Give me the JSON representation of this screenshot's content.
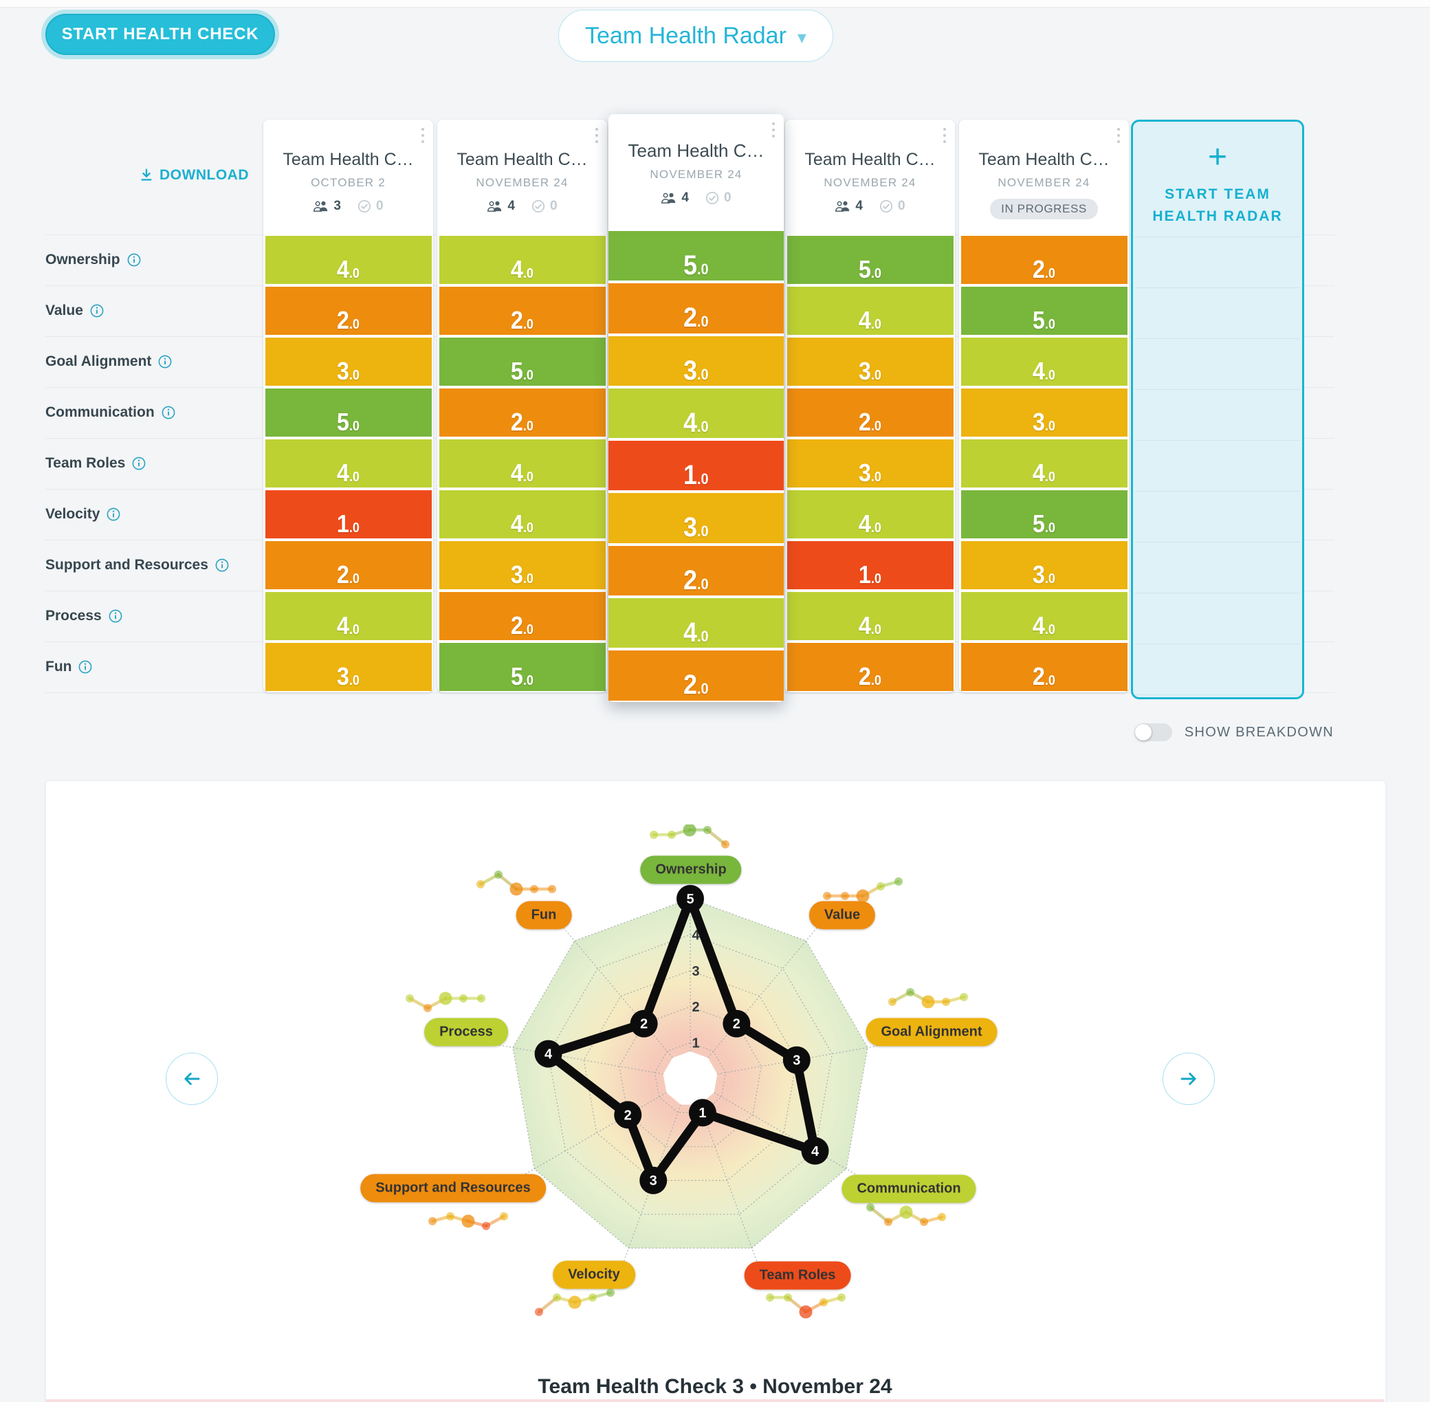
{
  "app": {
    "start_health_check_button": "START HEALTH CHECK",
    "title_dropdown": "Team Health Radar"
  },
  "table": {
    "download_label": "DOWNLOAD",
    "row_labels": [
      "Ownership",
      "Value",
      "Goal Alignment",
      "Communication",
      "Team Roles",
      "Velocity",
      "Support and Resources",
      "Process",
      "Fun"
    ],
    "columns": [
      {
        "title": "Team Health C…",
        "date": "OCTOBER 2",
        "participants": "3",
        "completed": "0",
        "state": "done"
      },
      {
        "title": "Team Health C…",
        "date": "NOVEMBER 24",
        "participants": "4",
        "completed": "0",
        "state": "done"
      },
      {
        "title": "Team Health C…",
        "date": "NOVEMBER 24",
        "participants": "4",
        "completed": "0",
        "state": "selected"
      },
      {
        "title": "Team Health C…",
        "date": "NOVEMBER 24",
        "participants": "4",
        "completed": "0",
        "state": "done"
      },
      {
        "title": "Team Health C…",
        "date": "NOVEMBER 24",
        "status_badge": "IN PROGRESS",
        "state": "in-progress"
      }
    ],
    "scores": [
      [
        4,
        4,
        5,
        5,
        2
      ],
      [
        2,
        2,
        2,
        4,
        5
      ],
      [
        3,
        5,
        3,
        3,
        4
      ],
      [
        5,
        2,
        4,
        2,
        3
      ],
      [
        4,
        4,
        1,
        3,
        4
      ],
      [
        1,
        4,
        3,
        4,
        5
      ],
      [
        2,
        3,
        2,
        1,
        3
      ],
      [
        4,
        2,
        4,
        4,
        4
      ],
      [
        3,
        5,
        2,
        2,
        2
      ]
    ],
    "score_display_suffix": ".0",
    "score_colors": {
      "1": "#ee4b1a",
      "2": "#ee8c0e",
      "3": "#edb30f",
      "4": "#bdd133",
      "5": "#79b63c"
    },
    "start_panel_label": "START TEAM HEALTH RADAR"
  },
  "controls": {
    "show_breakdown_label": "SHOW BREAKDOWN",
    "show_breakdown_on": false
  },
  "chart_data": {
    "type": "radar",
    "categories": [
      "Ownership",
      "Value",
      "Goal Alignment",
      "Communication",
      "Team Roles",
      "Velocity",
      "Support and Resources",
      "Process",
      "Fun"
    ],
    "axis_range": [
      1,
      5
    ],
    "ring_ticks": [
      1,
      2,
      3,
      4,
      5
    ],
    "selected_check_index": 2,
    "selected_values": [
      5,
      2,
      3,
      4,
      1,
      3,
      2,
      4,
      2
    ],
    "series": [
      {
        "date": "OCTOBER 2",
        "values": [
          4,
          2,
          3,
          5,
          4,
          1,
          2,
          4,
          3
        ]
      },
      {
        "date": "NOVEMBER 24",
        "values": [
          4,
          2,
          5,
          2,
          4,
          4,
          3,
          2,
          5
        ]
      },
      {
        "date": "NOVEMBER 24",
        "values": [
          5,
          2,
          3,
          4,
          1,
          3,
          2,
          4,
          2
        ]
      },
      {
        "date": "NOVEMBER 24",
        "values": [
          5,
          4,
          3,
          2,
          3,
          4,
          1,
          4,
          2
        ]
      },
      {
        "date": "NOVEMBER 24",
        "values": [
          2,
          5,
          4,
          3,
          4,
          5,
          3,
          4,
          2
        ]
      }
    ],
    "caption": "Team Health Check 3 • November 24",
    "legend_position": "around-radar",
    "grid": "dotted"
  },
  "colors": {
    "accent": "#1db4d3",
    "accent_light": "#def2f8",
    "page_bg": "#f3f5f7",
    "polygon": "#0c0c0c"
  }
}
